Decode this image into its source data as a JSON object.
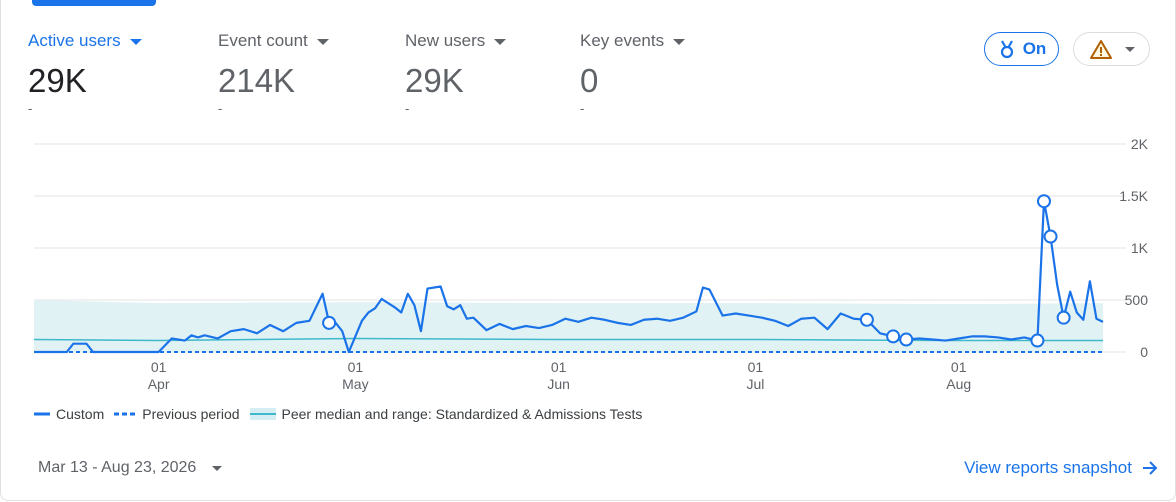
{
  "metrics": [
    {
      "label": "Active users",
      "value": "29K",
      "delta": "-"
    },
    {
      "label": "Event count",
      "value": "214K",
      "delta": "-"
    },
    {
      "label": "New users",
      "value": "29K",
      "delta": "-"
    },
    {
      "label": "Key events",
      "value": "0",
      "delta": "-"
    }
  ],
  "toggle": {
    "label": "On",
    "icon": "medal-icon"
  },
  "warning": {
    "icon": "warning-triangle-icon"
  },
  "colors": {
    "accent": "#1a73e8",
    "peer_band": "#e1f2f5",
    "peer_line": "#3fb8c9",
    "warning": "#b06000"
  },
  "legend": [
    {
      "label": "Custom",
      "style": "solid"
    },
    {
      "label": "Previous period",
      "style": "dashed"
    },
    {
      "label": "Peer median and range: Standardized & Admissions Tests",
      "style": "band"
    }
  ],
  "footer": {
    "date_range": "Mar 13 - Aug 23, 2026",
    "snapshot_link": "View reports snapshot"
  },
  "chart_data": {
    "type": "line",
    "x_start": "2026-03-13",
    "x_end": "2026-08-23",
    "ylim": [
      0,
      2000
    ],
    "yticks": [
      "2K",
      "1.5K",
      "1K",
      "500",
      "0"
    ],
    "xticks": [
      {
        "date": "2026-04-01",
        "day": "01",
        "month": "Apr"
      },
      {
        "date": "2026-05-01",
        "day": "01",
        "month": "May"
      },
      {
        "date": "2026-06-01",
        "day": "01",
        "month": "Jun"
      },
      {
        "date": "2026-07-01",
        "day": "01",
        "month": "Jul"
      },
      {
        "date": "2026-08-01",
        "day": "01",
        "month": "Aug"
      }
    ],
    "grid": true,
    "legend_position": "bottom-left",
    "series": [
      {
        "name": "Custom",
        "x": [
          "2026-03-13",
          "2026-03-18",
          "2026-03-19",
          "2026-03-21",
          "2026-03-22",
          "2026-04-01",
          "2026-04-03",
          "2026-04-05",
          "2026-04-06",
          "2026-04-07",
          "2026-04-08",
          "2026-04-10",
          "2026-04-12",
          "2026-04-14",
          "2026-04-16",
          "2026-04-18",
          "2026-04-20",
          "2026-04-22",
          "2026-04-24",
          "2026-04-26",
          "2026-04-27",
          "2026-04-28",
          "2026-04-29",
          "2026-04-30",
          "2026-05-02",
          "2026-05-03",
          "2026-05-04",
          "2026-05-05",
          "2026-05-07",
          "2026-05-08",
          "2026-05-09",
          "2026-05-10",
          "2026-05-11",
          "2026-05-12",
          "2026-05-14",
          "2026-05-15",
          "2026-05-16",
          "2026-05-17",
          "2026-05-18",
          "2026-05-19",
          "2026-05-21",
          "2026-05-23",
          "2026-05-25",
          "2026-05-27",
          "2026-05-29",
          "2026-05-31",
          "2026-06-02",
          "2026-06-04",
          "2026-06-06",
          "2026-06-08",
          "2026-06-10",
          "2026-06-12",
          "2026-06-14",
          "2026-06-16",
          "2026-06-18",
          "2026-06-20",
          "2026-06-22",
          "2026-06-23",
          "2026-06-24",
          "2026-06-26",
          "2026-06-28",
          "2026-06-30",
          "2026-07-02",
          "2026-07-04",
          "2026-07-06",
          "2026-07-08",
          "2026-07-10",
          "2026-07-12",
          "2026-07-14",
          "2026-07-16",
          "2026-07-18",
          "2026-07-20",
          "2026-07-22",
          "2026-07-24",
          "2026-07-26",
          "2026-07-28",
          "2026-07-30",
          "2026-08-01",
          "2026-08-03",
          "2026-08-05",
          "2026-08-07",
          "2026-08-09",
          "2026-08-11",
          "2026-08-13",
          "2026-08-14",
          "2026-08-15",
          "2026-08-16",
          "2026-08-17",
          "2026-08-18",
          "2026-08-19",
          "2026-08-20",
          "2026-08-21",
          "2026-08-22",
          "2026-08-23"
        ],
        "values": [
          0,
          0,
          80,
          80,
          0,
          0,
          130,
          110,
          160,
          140,
          160,
          130,
          200,
          220,
          180,
          260,
          200,
          280,
          300,
          560,
          280,
          280,
          200,
          0,
          300,
          380,
          420,
          510,
          430,
          380,
          560,
          450,
          200,
          610,
          630,
          440,
          410,
          450,
          320,
          330,
          210,
          270,
          220,
          250,
          230,
          260,
          320,
          290,
          330,
          310,
          280,
          260,
          310,
          320,
          300,
          330,
          390,
          620,
          600,
          350,
          370,
          350,
          330,
          300,
          250,
          320,
          330,
          220,
          370,
          320,
          310,
          180,
          150,
          120,
          130,
          120,
          110,
          130,
          150,
          150,
          140,
          120,
          140,
          110,
          1450,
          1110,
          650,
          330,
          580,
          380,
          310,
          680,
          320,
          290
        ]
      },
      {
        "name": "Previous period",
        "x": [
          "2026-03-13",
          "2026-08-23"
        ],
        "values": [
          0,
          0
        ]
      },
      {
        "name": "Peer median and range: Standardized & Admissions Tests",
        "x": [
          "2026-03-13",
          "2026-04-01",
          "2026-05-01",
          "2026-06-01",
          "2026-07-01",
          "2026-08-01",
          "2026-08-23"
        ],
        "values": [
          120,
          110,
          130,
          120,
          120,
          110,
          110
        ],
        "band_upper": [
          500,
          470,
          480,
          470,
          470,
          460,
          470
        ],
        "band_lower": [
          0,
          0,
          0,
          0,
          0,
          0,
          0
        ]
      }
    ]
  }
}
